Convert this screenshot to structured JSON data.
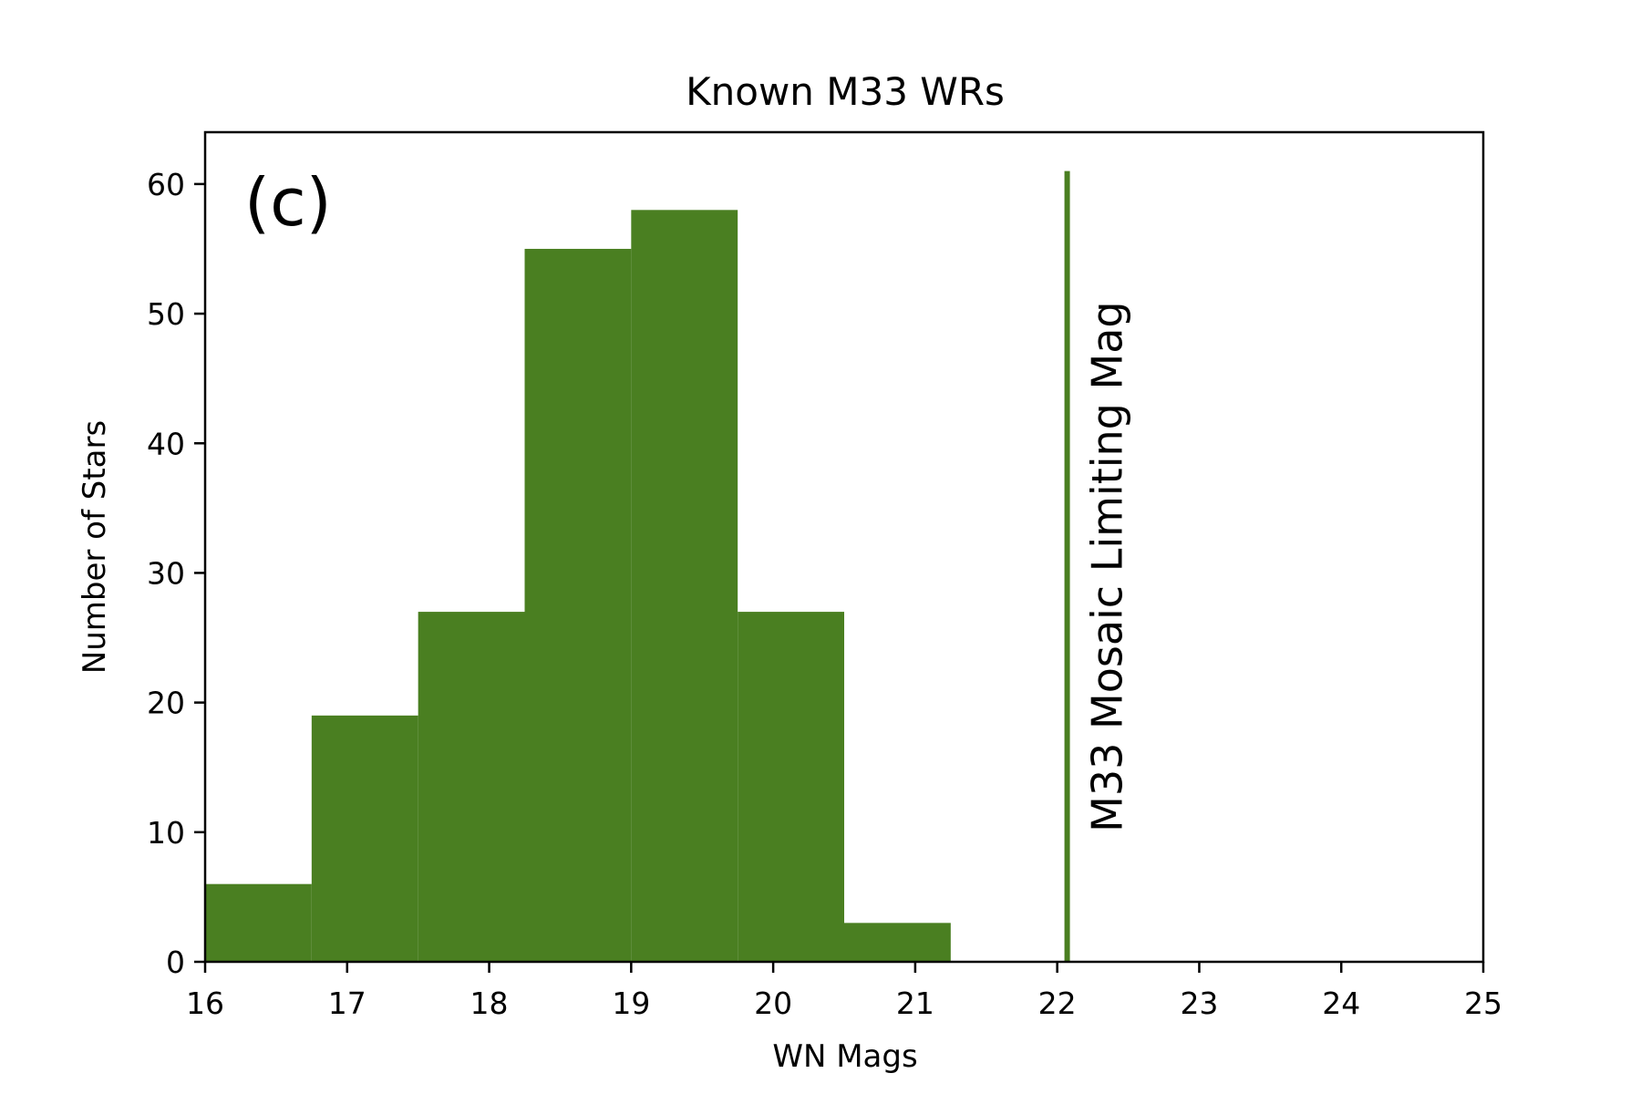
{
  "chart_data": {
    "type": "bar",
    "title": "Known M33 WRs",
    "xlabel": "WN Mags",
    "ylabel": "Number of Stars",
    "panel_label": "(c)",
    "xlim": [
      16,
      25
    ],
    "ylim": [
      0,
      64
    ],
    "xticks": [
      16,
      17,
      18,
      19,
      20,
      21,
      22,
      23,
      24,
      25
    ],
    "yticks": [
      0,
      10,
      20,
      30,
      40,
      50,
      60
    ],
    "grid": false,
    "bar_color": "#4a7f21",
    "bins": [
      {
        "x0": 16.0,
        "x1": 16.75,
        "value": 6
      },
      {
        "x0": 16.75,
        "x1": 17.5,
        "value": 19
      },
      {
        "x0": 17.5,
        "x1": 18.25,
        "value": 27
      },
      {
        "x0": 18.25,
        "x1": 19.0,
        "value": 55
      },
      {
        "x0": 19.0,
        "x1": 19.75,
        "value": 58
      },
      {
        "x0": 19.75,
        "x1": 20.5,
        "value": 27
      },
      {
        "x0": 20.5,
        "x1": 21.25,
        "value": 3
      }
    ],
    "vline": {
      "x": 22.07,
      "y_top": 61,
      "label": "M33 Mosaic Limiting Mag",
      "color": "#4a7f21"
    }
  }
}
